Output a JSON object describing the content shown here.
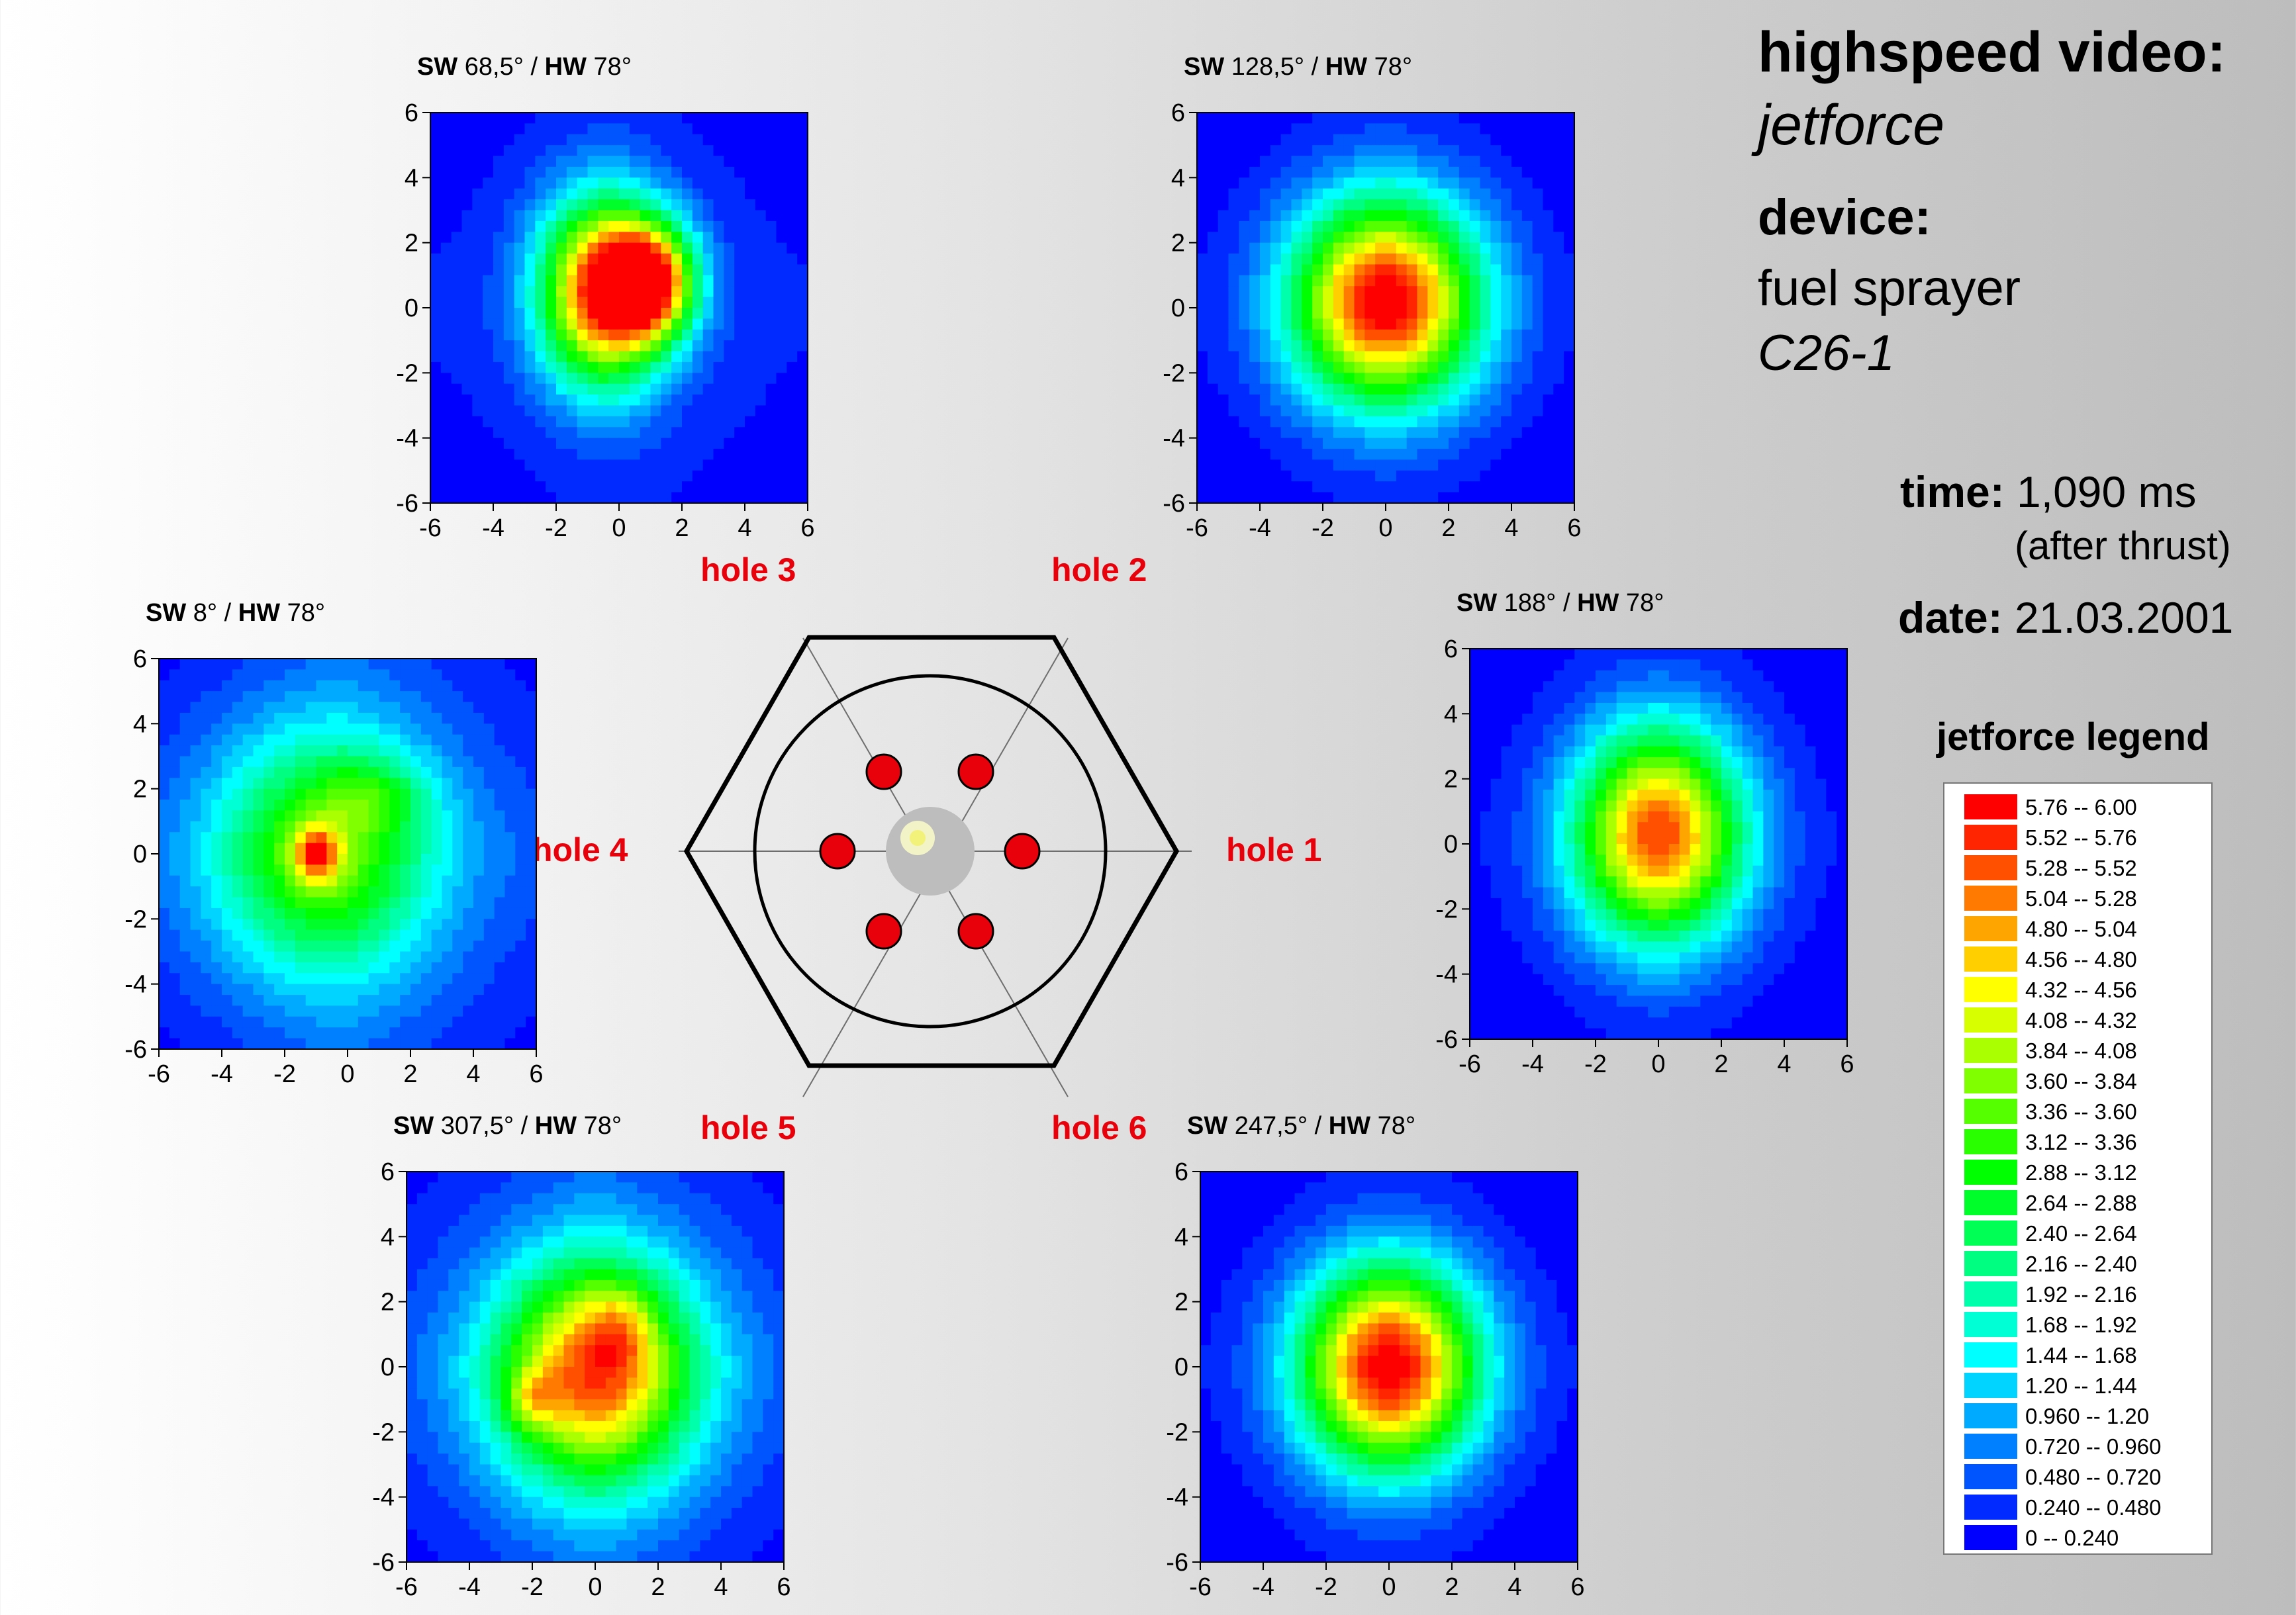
{
  "header": {
    "line1": "highspeed video:",
    "line2": "jetforce",
    "line3": "device:",
    "line4": "fuel sprayer",
    "line5": "C26-1"
  },
  "info": {
    "time_label": "time:",
    "time_value": "1,090 ms",
    "time_note": "(after thrust)",
    "date_label": "date:",
    "date_value": "21.03.2001"
  },
  "legend": {
    "title": "jetforce legend",
    "entries": [
      {
        "label": "5.76  --  6.00",
        "color": "#ff0000"
      },
      {
        "label": "5.52  --  5.76",
        "color": "#ff2500"
      },
      {
        "label": "5.28  --  5.52",
        "color": "#ff5000"
      },
      {
        "label": "5.04  --  5.28",
        "color": "#ff7a00"
      },
      {
        "label": "4.80  --  5.04",
        "color": "#ffa500"
      },
      {
        "label": "4.56  --  4.80",
        "color": "#ffcf00"
      },
      {
        "label": "4.32  --  4.56",
        "color": "#ffff00"
      },
      {
        "label": "4.08  --  4.32",
        "color": "#d8ff00"
      },
      {
        "label": "3.84  --  4.08",
        "color": "#aaff00"
      },
      {
        "label": "3.60  --  3.84",
        "color": "#80ff00"
      },
      {
        "label": "3.36  --  3.60",
        "color": "#55ff00"
      },
      {
        "label": "3.12  --  3.36",
        "color": "#2aff00"
      },
      {
        "label": "2.88  --  3.12",
        "color": "#00ff00"
      },
      {
        "label": "2.64  --  2.88",
        "color": "#00ff2a"
      },
      {
        "label": "2.40  --  2.64",
        "color": "#00ff55"
      },
      {
        "label": "2.16  --  2.40",
        "color": "#00ff80"
      },
      {
        "label": "1.92  --  2.16",
        "color": "#00ffaa"
      },
      {
        "label": "1.68  --  1.92",
        "color": "#00ffd4"
      },
      {
        "label": "1.44  --  1.68",
        "color": "#00ffff"
      },
      {
        "label": "1.20  --  1.44",
        "color": "#00d4ff"
      },
      {
        "label": "0.960  --  1.20",
        "color": "#00aaff"
      },
      {
        "label": "0.720  --  0.960",
        "color": "#0080ff"
      },
      {
        "label": "0.480  --  0.720",
        "color": "#0055ff"
      },
      {
        "label": "0.240  --  0.480",
        "color": "#002aff"
      },
      {
        "label": "0  --  0.240",
        "color": "#0000ff"
      }
    ]
  },
  "nozzle": {
    "holes": [
      "hole 1",
      "hole 2",
      "hole 3",
      "hole 4",
      "hole 5",
      "hole 6"
    ],
    "hole_color": "#e8000b"
  },
  "chart_data": [
    {
      "type": "heatmap",
      "title_sw_label": "SW",
      "title_sw": "68,5°",
      "title_sep": "/",
      "title_hw_label": "HW",
      "title_hw": "78°",
      "xlim": [
        -6,
        6
      ],
      "ylim": [
        -6,
        6
      ],
      "xticks": [
        -6,
        -4,
        -2,
        0,
        2,
        4,
        6
      ],
      "yticks": [
        -6,
        -4,
        -2,
        0,
        2,
        4,
        6
      ],
      "peaks": [
        {
          "x": -0.5,
          "y": 0.5,
          "value": 5.3,
          "sx": 1.4,
          "sy": 2.0
        },
        {
          "x": 1.0,
          "y": 0.8,
          "value": 4.4,
          "sx": 1.0,
          "sy": 1.2
        }
      ],
      "background": 0.5,
      "z_max": 6.0
    },
    {
      "type": "heatmap",
      "title_sw_label": "SW",
      "title_sw": "128,5°",
      "title_sep": "/",
      "title_hw_label": "HW",
      "title_hw": "78°",
      "xlim": [
        -6,
        6
      ],
      "ylim": [
        -6,
        6
      ],
      "xticks": [
        -6,
        -4,
        -2,
        0,
        2,
        4,
        6
      ],
      "yticks": [
        -6,
        -4,
        -2,
        0,
        2,
        4,
        6
      ],
      "peaks": [
        {
          "x": 0.0,
          "y": 0.2,
          "value": 5.8,
          "sx": 2.1,
          "sy": 2.2
        }
      ],
      "background": 0.3,
      "z_max": 6.0
    },
    {
      "type": "heatmap",
      "title_sw_label": "SW",
      "title_sw": "8°",
      "title_sep": "/",
      "title_hw_label": "HW",
      "title_hw": "78°",
      "xlim": [
        -6,
        6
      ],
      "ylim": [
        -6,
        6
      ],
      "xticks": [
        -6,
        -4,
        -2,
        0,
        2,
        4,
        6
      ],
      "yticks": [
        -6,
        -4,
        -2,
        0,
        2,
        4,
        6
      ],
      "peaks": [
        {
          "x": -0.8,
          "y": 0.0,
          "value": 2.8,
          "sx": 2.4,
          "sy": 2.6
        },
        {
          "x": -1.0,
          "y": 0.0,
          "value": 2.4,
          "sx": 0.5,
          "sy": 0.6
        },
        {
          "x": 1.0,
          "y": 1.8,
          "value": 0.9,
          "sx": 1.2,
          "sy": 0.8
        }
      ],
      "background": 1.0,
      "z_max": 6.0
    },
    {
      "type": "heatmap",
      "title_sw_label": "SW",
      "title_sw": "188°",
      "title_sep": "/",
      "title_hw_label": "HW",
      "title_hw": "78°",
      "xlim": [
        -6,
        6
      ],
      "ylim": [
        -6,
        6
      ],
      "xticks": [
        -6,
        -4,
        -2,
        0,
        2,
        4,
        6
      ],
      "yticks": [
        -6,
        -4,
        -2,
        0,
        2,
        4,
        6
      ],
      "peaks": [
        {
          "x": 0.0,
          "y": 0.3,
          "value": 5.2,
          "sx": 1.9,
          "sy": 2.3
        }
      ],
      "background": 0.3,
      "z_max": 6.0
    },
    {
      "type": "heatmap",
      "title_sw_label": "SW",
      "title_sw": "307,5°",
      "title_sep": "/",
      "title_hw_label": "HW",
      "title_hw": "78°",
      "xlim": [
        -6,
        6
      ],
      "ylim": [
        -6,
        6
      ],
      "xticks": [
        -6,
        -4,
        -2,
        0,
        2,
        4,
        6
      ],
      "yticks": [
        -6,
        -4,
        -2,
        0,
        2,
        4,
        6
      ],
      "peaks": [
        {
          "x": 0.0,
          "y": -0.2,
          "value": 4.6,
          "sx": 2.2,
          "sy": 2.4
        },
        {
          "x": -2.0,
          "y": -1.0,
          "value": 1.2,
          "sx": 0.6,
          "sy": 0.6
        },
        {
          "x": 0.8,
          "y": 1.2,
          "value": 0.9,
          "sx": 0.7,
          "sy": 0.9
        }
      ],
      "background": 1.0,
      "z_max": 6.0
    },
    {
      "type": "heatmap",
      "title_sw_label": "SW",
      "title_sw": "247,5°",
      "title_sep": "/",
      "title_hw_label": "HW",
      "title_hw": "78°",
      "xlim": [
        -6,
        6
      ],
      "ylim": [
        -6,
        6
      ],
      "xticks": [
        -6,
        -4,
        -2,
        0,
        2,
        4,
        6
      ],
      "yticks": [
        -6,
        -4,
        -2,
        0,
        2,
        4,
        6
      ],
      "peaks": [
        {
          "x": 0.0,
          "y": 0.0,
          "value": 5.8,
          "sx": 2.0,
          "sy": 2.2
        }
      ],
      "background": 0.3,
      "z_max": 6.0
    }
  ]
}
